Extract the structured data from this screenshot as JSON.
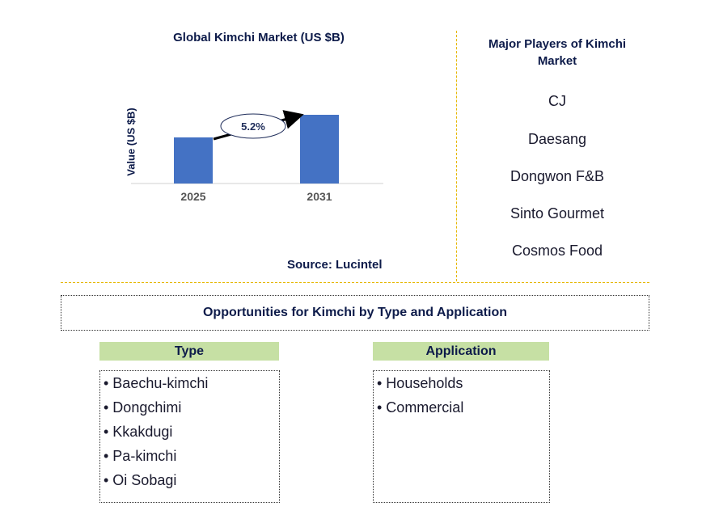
{
  "chart_data": {
    "type": "bar",
    "title": "Global Kimchi Market (US $B)",
    "ylabel": "Value (US $B)",
    "categories": [
      "2025",
      "2031"
    ],
    "values": [
      1.0,
      1.49
    ],
    "annotation": "5.2%",
    "source": "Source: Lucintel",
    "bar_color": "#4472C4",
    "grid": false
  },
  "players": {
    "title": "Major Players of Kimchi Market",
    "items": [
      "CJ",
      "Daesang",
      "Dongwon F&B",
      "Sinto Gourmet",
      "Cosmos Food"
    ]
  },
  "opportunities": {
    "title": "Opportunities for Kimchi by Type and Application",
    "type": {
      "header": "Type",
      "items": [
        "• Baechu-kimchi",
        "• Dongchimi",
        "• Kkakdugi",
        "• Pa-kimchi",
        "• Oi Sobagi"
      ]
    },
    "application": {
      "header": "Application",
      "items": [
        "• Households",
        "• Commercial"
      ]
    }
  }
}
